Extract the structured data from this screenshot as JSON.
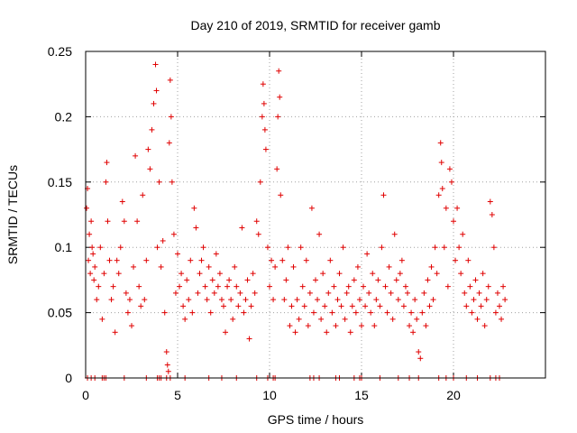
{
  "chart_data": {
    "type": "scatter",
    "title": "Day 210 of 2019, SRMTID for receiver gamb",
    "xlabel": "GPS time / hours",
    "ylabel": "SRMTID / TECUs",
    "xlim": [
      0,
      25
    ],
    "ylim": [
      0,
      0.25
    ],
    "x_ticks": [
      0,
      5,
      10,
      15,
      20
    ],
    "x_tick_labels": [
      "0",
      "5",
      "10",
      "15",
      "20"
    ],
    "y_ticks": [
      0,
      0.05,
      0.1,
      0.15,
      0.2,
      0.25
    ],
    "y_tick_labels": [
      "0",
      "0.05",
      "0.1",
      "0.15",
      "0.2",
      "0.25"
    ],
    "grid": true,
    "marker": "+",
    "series_color": "#e00000",
    "series": [
      {
        "name": "SRMTID",
        "points": [
          [
            0.05,
            0.13
          ],
          [
            0.1,
            0.145
          ],
          [
            0.15,
            0.09
          ],
          [
            0.2,
            0.11
          ],
          [
            0.25,
            0.08
          ],
          [
            0.3,
            0.12
          ],
          [
            0.35,
            0.1
          ],
          [
            0.4,
            0.095
          ],
          [
            0.45,
            0.075
          ],
          [
            0.5,
            0.085
          ],
          [
            0.6,
            0.06
          ],
          [
            0.7,
            0.07
          ],
          [
            0.8,
            0.1
          ],
          [
            0.9,
            0.045
          ],
          [
            1.0,
            0.08
          ],
          [
            1.1,
            0.15
          ],
          [
            1.15,
            0.165
          ],
          [
            1.2,
            0.12
          ],
          [
            1.3,
            0.09
          ],
          [
            1.4,
            0.06
          ],
          [
            1.5,
            0.07
          ],
          [
            1.6,
            0.035
          ],
          [
            1.7,
            0.09
          ],
          [
            1.8,
            0.08
          ],
          [
            1.9,
            0.1
          ],
          [
            2.0,
            0.135
          ],
          [
            2.1,
            0.12
          ],
          [
            2.2,
            0.065
          ],
          [
            2.3,
            0.05
          ],
          [
            2.4,
            0.06
          ],
          [
            2.5,
            0.04
          ],
          [
            2.6,
            0.085
          ],
          [
            2.7,
            0.17
          ],
          [
            2.8,
            0.12
          ],
          [
            2.9,
            0.07
          ],
          [
            3.0,
            0.055
          ],
          [
            3.1,
            0.14
          ],
          [
            3.2,
            0.06
          ],
          [
            3.3,
            0.09
          ],
          [
            3.4,
            0.175
          ],
          [
            3.5,
            0.16
          ],
          [
            3.6,
            0.19
          ],
          [
            3.7,
            0.21
          ],
          [
            3.8,
            0.24
          ],
          [
            3.85,
            0.22
          ],
          [
            3.9,
            0.1
          ],
          [
            4.0,
            0.15
          ],
          [
            4.1,
            0.085
          ],
          [
            4.2,
            0.105
          ],
          [
            4.3,
            0.05
          ],
          [
            4.4,
            0.02
          ],
          [
            4.45,
            0.01
          ],
          [
            4.5,
            0.005
          ],
          [
            4.55,
            0.18
          ],
          [
            4.6,
            0.228
          ],
          [
            4.65,
            0.2
          ],
          [
            4.7,
            0.15
          ],
          [
            4.8,
            0.11
          ],
          [
            4.9,
            0.065
          ],
          [
            5.0,
            0.095
          ],
          [
            5.1,
            0.07
          ],
          [
            5.2,
            0.08
          ],
          [
            5.3,
            0.055
          ],
          [
            5.4,
            0.045
          ],
          [
            5.5,
            0.075
          ],
          [
            5.6,
            0.06
          ],
          [
            5.7,
            0.09
          ],
          [
            5.8,
            0.05
          ],
          [
            5.9,
            0.13
          ],
          [
            6.0,
            0.115
          ],
          [
            6.1,
            0.065
          ],
          [
            6.2,
            0.08
          ],
          [
            6.3,
            0.09
          ],
          [
            6.4,
            0.1
          ],
          [
            6.5,
            0.07
          ],
          [
            6.6,
            0.06
          ],
          [
            6.7,
            0.085
          ],
          [
            6.8,
            0.05
          ],
          [
            6.9,
            0.075
          ],
          [
            7.0,
            0.065
          ],
          [
            7.1,
            0.095
          ],
          [
            7.2,
            0.07
          ],
          [
            7.3,
            0.08
          ],
          [
            7.4,
            0.06
          ],
          [
            7.5,
            0.055
          ],
          [
            7.6,
            0.035
          ],
          [
            7.7,
            0.07
          ],
          [
            7.8,
            0.075
          ],
          [
            7.9,
            0.06
          ],
          [
            8.0,
            0.045
          ],
          [
            8.1,
            0.085
          ],
          [
            8.2,
            0.07
          ],
          [
            8.3,
            0.055
          ],
          [
            8.4,
            0.065
          ],
          [
            8.5,
            0.115
          ],
          [
            8.6,
            0.05
          ],
          [
            8.7,
            0.06
          ],
          [
            8.8,
            0.075
          ],
          [
            8.9,
            0.03
          ],
          [
            9.0,
            0.055
          ],
          [
            9.1,
            0.08
          ],
          [
            9.2,
            0.065
          ],
          [
            9.3,
            0.12
          ],
          [
            9.4,
            0.11
          ],
          [
            9.5,
            0.15
          ],
          [
            9.6,
            0.2
          ],
          [
            9.65,
            0.225
          ],
          [
            9.7,
            0.21
          ],
          [
            9.75,
            0.19
          ],
          [
            9.8,
            0.175
          ],
          [
            9.9,
            0.1
          ],
          [
            10.0,
            0.07
          ],
          [
            10.1,
            0.09
          ],
          [
            10.2,
            0.06
          ],
          [
            10.3,
            0.085
          ],
          [
            10.4,
            0.16
          ],
          [
            10.45,
            0.2
          ],
          [
            10.5,
            0.235
          ],
          [
            10.55,
            0.215
          ],
          [
            10.6,
            0.14
          ],
          [
            10.7,
            0.09
          ],
          [
            10.8,
            0.06
          ],
          [
            10.9,
            0.075
          ],
          [
            11.0,
            0.1
          ],
          [
            11.1,
            0.04
          ],
          [
            11.2,
            0.055
          ],
          [
            11.3,
            0.085
          ],
          [
            11.4,
            0.035
          ],
          [
            11.5,
            0.06
          ],
          [
            11.6,
            0.045
          ],
          [
            11.7,
            0.1
          ],
          [
            11.8,
            0.07
          ],
          [
            11.9,
            0.055
          ],
          [
            12.0,
            0.09
          ],
          [
            12.1,
            0.04
          ],
          [
            12.2,
            0.065
          ],
          [
            12.3,
            0.13
          ],
          [
            12.4,
            0.05
          ],
          [
            12.5,
            0.075
          ],
          [
            12.6,
            0.06
          ],
          [
            12.7,
            0.11
          ],
          [
            12.8,
            0.045
          ],
          [
            12.9,
            0.08
          ],
          [
            13.0,
            0.055
          ],
          [
            13.1,
            0.035
          ],
          [
            13.2,
            0.065
          ],
          [
            13.3,
            0.09
          ],
          [
            13.4,
            0.05
          ],
          [
            13.5,
            0.07
          ],
          [
            13.6,
            0.04
          ],
          [
            13.7,
            0.06
          ],
          [
            13.8,
            0.08
          ],
          [
            13.9,
            0.055
          ],
          [
            14.0,
            0.1
          ],
          [
            14.1,
            0.045
          ],
          [
            14.2,
            0.065
          ],
          [
            14.3,
            0.07
          ],
          [
            14.4,
            0.035
          ],
          [
            14.5,
            0.055
          ],
          [
            14.6,
            0.075
          ],
          [
            14.7,
            0.05
          ],
          [
            14.8,
            0.085
          ],
          [
            14.9,
            0.06
          ],
          [
            15.0,
            0.04
          ],
          [
            15.1,
            0.07
          ],
          [
            15.2,
            0.055
          ],
          [
            15.3,
            0.095
          ],
          [
            15.4,
            0.065
          ],
          [
            15.5,
            0.05
          ],
          [
            15.6,
            0.08
          ],
          [
            15.7,
            0.04
          ],
          [
            15.8,
            0.06
          ],
          [
            15.9,
            0.075
          ],
          [
            16.0,
            0.055
          ],
          [
            16.1,
            0.1
          ],
          [
            16.2,
            0.14
          ],
          [
            16.3,
            0.07
          ],
          [
            16.4,
            0.05
          ],
          [
            16.5,
            0.085
          ],
          [
            16.6,
            0.065
          ],
          [
            16.7,
            0.045
          ],
          [
            16.8,
            0.11
          ],
          [
            16.9,
            0.075
          ],
          [
            17.0,
            0.06
          ],
          [
            17.1,
            0.08
          ],
          [
            17.2,
            0.09
          ],
          [
            17.3,
            0.055
          ],
          [
            17.4,
            0.07
          ],
          [
            17.5,
            0.065
          ],
          [
            17.6,
            0.04
          ],
          [
            17.7,
            0.05
          ],
          [
            17.8,
            0.035
          ],
          [
            17.9,
            0.06
          ],
          [
            18.0,
            0.045
          ],
          [
            18.1,
            0.02
          ],
          [
            18.2,
            0.015
          ],
          [
            18.3,
            0.05
          ],
          [
            18.4,
            0.065
          ],
          [
            18.5,
            0.04
          ],
          [
            18.6,
            0.075
          ],
          [
            18.7,
            0.055
          ],
          [
            18.8,
            0.085
          ],
          [
            18.9,
            0.06
          ],
          [
            19.0,
            0.1
          ],
          [
            19.1,
            0.08
          ],
          [
            19.2,
            0.14
          ],
          [
            19.3,
            0.18
          ],
          [
            19.35,
            0.165
          ],
          [
            19.4,
            0.145
          ],
          [
            19.5,
            0.1
          ],
          [
            19.6,
            0.13
          ],
          [
            19.7,
            0.07
          ],
          [
            19.8,
            0.16
          ],
          [
            19.9,
            0.15
          ],
          [
            20.0,
            0.12
          ],
          [
            20.1,
            0.09
          ],
          [
            20.2,
            0.13
          ],
          [
            20.3,
            0.1
          ],
          [
            20.4,
            0.08
          ],
          [
            20.5,
            0.11
          ],
          [
            20.6,
            0.065
          ],
          [
            20.7,
            0.055
          ],
          [
            20.8,
            0.09
          ],
          [
            20.9,
            0.07
          ],
          [
            21.0,
            0.05
          ],
          [
            21.1,
            0.06
          ],
          [
            21.2,
            0.075
          ],
          [
            21.3,
            0.045
          ],
          [
            21.4,
            0.065
          ],
          [
            21.5,
            0.055
          ],
          [
            21.6,
            0.08
          ],
          [
            21.7,
            0.04
          ],
          [
            21.8,
            0.06
          ],
          [
            21.9,
            0.07
          ],
          [
            22.0,
            0.135
          ],
          [
            22.1,
            0.125
          ],
          [
            22.2,
            0.1
          ],
          [
            22.3,
            0.05
          ],
          [
            22.4,
            0.065
          ],
          [
            22.5,
            0.055
          ],
          [
            22.6,
            0.045
          ],
          [
            22.7,
            0.07
          ],
          [
            22.8,
            0.06
          ]
        ]
      }
    ],
    "zero_points_x": [
      0.1,
      0.3,
      0.5,
      0.9,
      1.0,
      1.1,
      2.1,
      3.3,
      3.9,
      4.0,
      4.1,
      4.4,
      4.6,
      5.4,
      6.7,
      7.4,
      8.2,
      9.3,
      9.9,
      10.2,
      10.3,
      12.2,
      12.4,
      12.7,
      13.6,
      13.8,
      14.6,
      14.9,
      15.0,
      16.0,
      17.0,
      17.6,
      18.1,
      19.2,
      19.6,
      20.0,
      20.7,
      21.3,
      22.0,
      22.3,
      22.5
    ]
  }
}
